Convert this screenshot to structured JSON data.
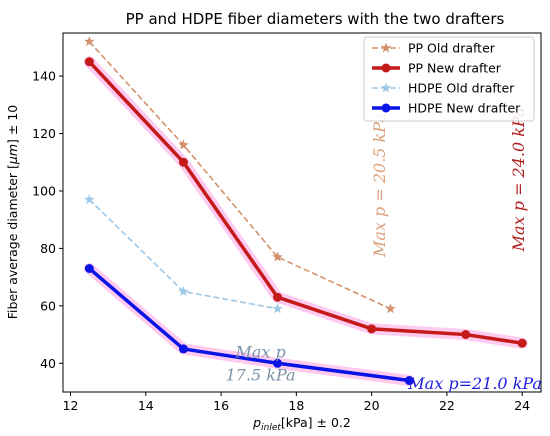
{
  "chart_data": {
    "type": "line",
    "title": "PP and HDPE fiber diameters with the two drafters",
    "xlabel": "p_inlet[kPa] ± 0.2",
    "ylabel": "Fiber average diameter [μm] ± 10",
    "xlabel_parts": {
      "main": "p",
      "sub": "inlet",
      "rest": "[kPa] ± 0.2"
    },
    "ylabel_parts": {
      "main": "Fiber average diameter [",
      "unit": "μm",
      "rest": "] ± 10"
    },
    "xlim": [
      11.8,
      24.5
    ],
    "ylim": [
      30,
      155
    ],
    "xticks": [
      12,
      14,
      16,
      18,
      20,
      22,
      24
    ],
    "yticks": [
      40,
      60,
      80,
      100,
      120,
      140
    ],
    "grid": false,
    "legend_position": "top-right",
    "series": [
      {
        "name": "PP Old drafter",
        "color": "#d4906a",
        "style": "dashed",
        "marker": "star",
        "x": [
          12.5,
          15,
          17.5,
          20.5
        ],
        "y": [
          152,
          116,
          77,
          59
        ]
      },
      {
        "name": "PP New drafter",
        "color": "#c41a1a",
        "style": "solid-thick",
        "marker": "circle",
        "x": [
          12.5,
          15,
          17.5,
          20,
          22.5,
          24
        ],
        "y": [
          145,
          110,
          63,
          52,
          50,
          47
        ]
      },
      {
        "name": "HDPE Old drafter",
        "color": "#9ec8e8",
        "style": "dashed",
        "marker": "star",
        "x": [
          12.5,
          15,
          17.5
        ],
        "y": [
          97,
          65,
          59
        ]
      },
      {
        "name": "HDPE New drafter",
        "color": "#0a14e6",
        "style": "solid-thick",
        "marker": "circle",
        "x": [
          12.5,
          15,
          17.5,
          21
        ],
        "y": [
          73,
          45,
          40,
          34
        ]
      }
    ],
    "annotations": [
      {
        "text": "Max p = 20.5 kPa",
        "color": "#dca07a",
        "rotation": -90,
        "x": 20.35,
        "y": 77
      },
      {
        "text": "Max p = 24.0 kPa",
        "color": "#b01e1e",
        "rotation": -90,
        "x": 24.05,
        "y": 79
      },
      {
        "text": "Max p",
        "color": "#7a92a8",
        "rotation": 0,
        "x": 17.05,
        "y": 42
      },
      {
        "text": "17.5 kPa",
        "color": "#7a92a8",
        "rotation": 0,
        "x": 17.05,
        "y": 34
      },
      {
        "text": "Max p=21.0 kPa",
        "color": "#1e1ee0",
        "rotation": 0,
        "x": 22.75,
        "y": 31
      }
    ]
  }
}
